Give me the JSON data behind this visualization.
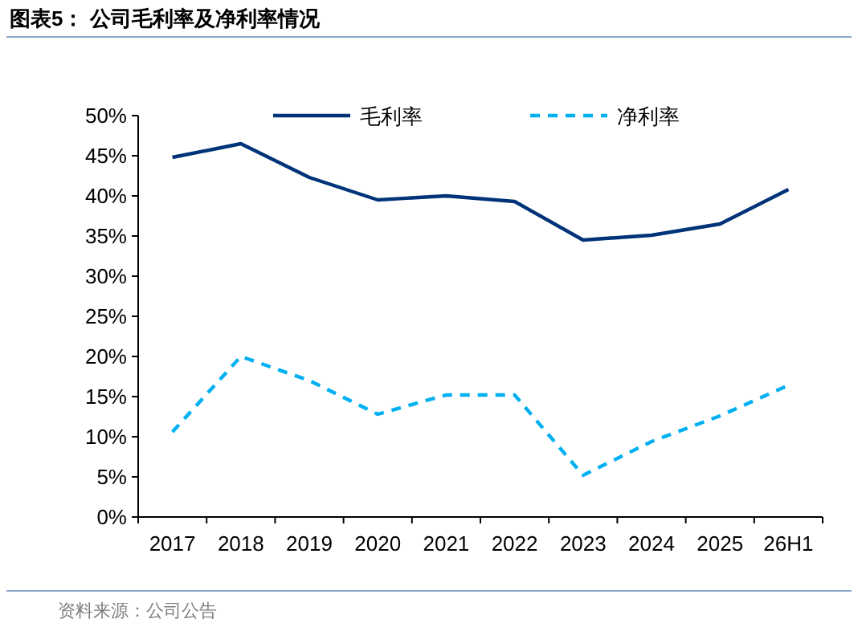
{
  "chart_data": {
    "type": "line",
    "title": "图表5：  公司毛利率及净利率情况",
    "annotations": [
      "资料来源：公司公告"
    ],
    "categories": [
      "2017",
      "2018",
      "2019",
      "2020",
      "2021",
      "2022",
      "2023",
      "2024",
      "2025",
      "26H1"
    ],
    "series": [
      {
        "name": "毛利率",
        "color": "#003378",
        "line_style": "solid",
        "values": [
          44.8,
          46.5,
          42.3,
          39.5,
          40.0,
          39.3,
          34.5,
          35.1,
          36.5,
          40.8
        ]
      },
      {
        "name": "净利率",
        "color": "#00b0f0",
        "line_style": "dashed",
        "values": [
          10.6,
          20.0,
          17.0,
          12.8,
          15.2,
          15.2,
          5.2,
          9.4,
          12.6,
          16.4
        ]
      }
    ],
    "ylim": [
      0,
      50
    ],
    "yticks": [
      {
        "value": 0,
        "label": "0%"
      },
      {
        "value": 5,
        "label": "5%"
      },
      {
        "value": 10,
        "label": "10%"
      },
      {
        "value": 15,
        "label": "15%"
      },
      {
        "value": 20,
        "label": "20%"
      },
      {
        "value": 25,
        "label": "25%"
      },
      {
        "value": 30,
        "label": "30%"
      },
      {
        "value": 35,
        "label": "35%"
      },
      {
        "value": 40,
        "label": "40%"
      },
      {
        "value": 45,
        "label": "45%"
      },
      {
        "value": 50,
        "label": "50%"
      }
    ],
    "legend": "top",
    "grid": false,
    "marker": "none"
  }
}
